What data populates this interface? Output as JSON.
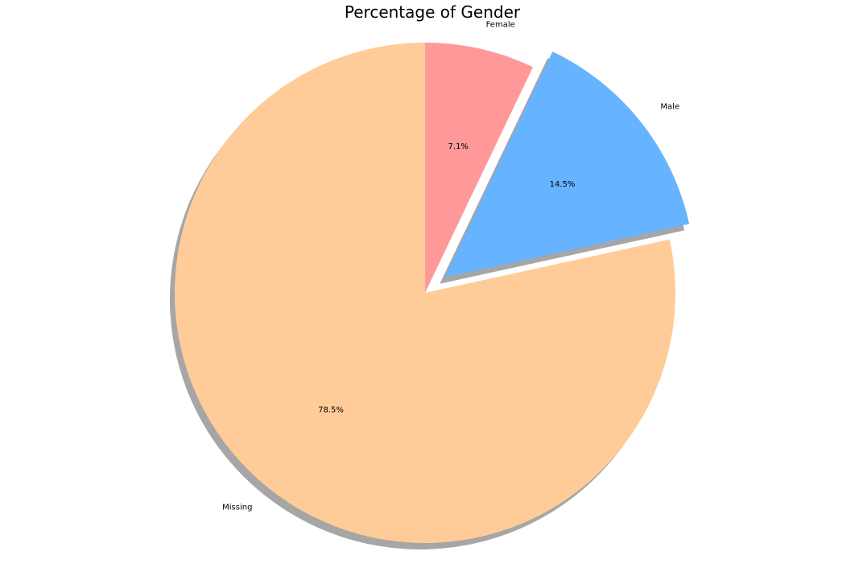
{
  "chart_data": {
    "type": "pie",
    "title": "Percentage of Gender",
    "slices": [
      {
        "label": "Female",
        "percent": 7.1,
        "label_text": "7.1%",
        "color": "#ff9999",
        "exploded": false
      },
      {
        "label": "Male",
        "percent": 14.5,
        "label_text": "14.5%",
        "color": "#66b3ff",
        "exploded": true
      },
      {
        "label": "Missing",
        "percent": 78.5,
        "label_text": "78.5%",
        "color": "#ffcc99",
        "exploded": false
      }
    ],
    "start_angle_deg": 90,
    "direction": "clockwise",
    "shadow": true,
    "legend": "none"
  }
}
